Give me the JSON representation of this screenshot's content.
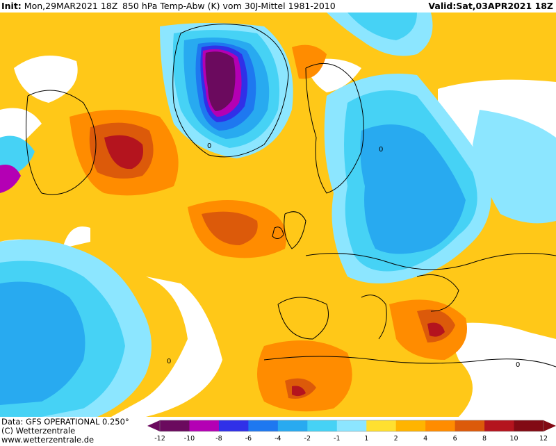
{
  "header": {
    "init_label": "Init:",
    "init_value": "Mon,29MAR2021 18Z",
    "title": "850 hPa Temp-Abw (K) vom 30J-Mittel 1981-2010",
    "valid_label": "Valid:",
    "valid_value": "Sat,03APR2021 18Z"
  },
  "map": {
    "contour_label": "0",
    "palette": {
      "-12": "#6b0a5e",
      "-10": "#b400b4",
      "-8": "#3030e8",
      "-6": "#1e78f0",
      "-4": "#28aaf0",
      "-2": "#46d2f5",
      "-1": "#8ce6ff",
      "1": "#ffffff",
      "2": "#ffe030",
      "4": "#ffb400",
      "6": "#ff8c00",
      "8": "#dc5a0a",
      "10": "#b4141e",
      "12": "#820a14"
    }
  },
  "footer": {
    "data_line": "Data: GFS OPERATIONAL 0.250°",
    "copyright_line": "(C) Wetterzentrale",
    "url_line": "www.wetterzentrale.de"
  },
  "legend": {
    "ticks": [
      "-12",
      "-10",
      "-8",
      "-6",
      "-4",
      "-2",
      "-1",
      "1",
      "2",
      "4",
      "6",
      "8",
      "10",
      "12"
    ],
    "colors": [
      "#6b0a5e",
      "#b400b4",
      "#3030e8",
      "#1e78f0",
      "#28aaf0",
      "#46d2f5",
      "#8ce6ff",
      "#ffffff",
      "#ffe030",
      "#ffb400",
      "#ff8c00",
      "#dc5a0a",
      "#b4141e",
      "#820a14"
    ]
  }
}
